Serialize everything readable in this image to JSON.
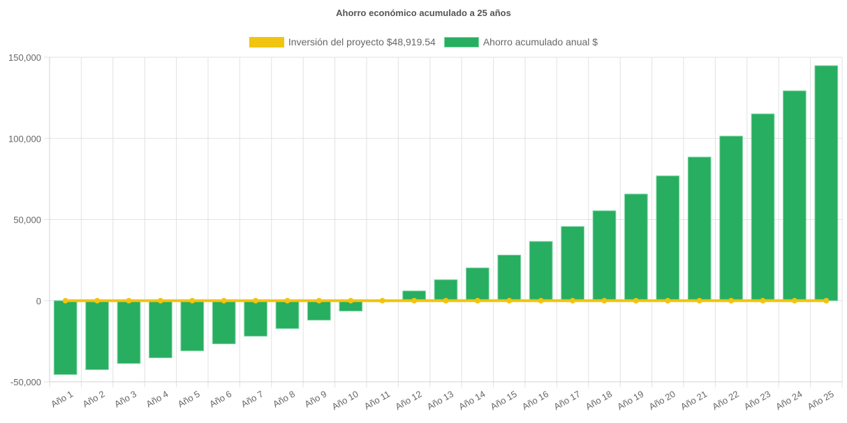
{
  "chart_data": {
    "type": "bar",
    "title": "Ahorro económico acumulado a 25 años",
    "xlabel": "",
    "ylabel": "",
    "ylim": [
      -50000,
      150000
    ],
    "yticks": [
      -50000,
      0,
      50000,
      100000,
      150000
    ],
    "ytick_labels": [
      "-50,000",
      "0",
      "50,000",
      "100,000",
      "150,000"
    ],
    "grid": true,
    "legend_position": "top-center",
    "categories": [
      "Año 1",
      "Año 2",
      "Año 3",
      "Año 4",
      "Año 5",
      "Año 6",
      "Año 7",
      "Año 8",
      "Año 9",
      "Año 10",
      "Año 11",
      "Año 12",
      "Año 13",
      "Año 14",
      "Año 15",
      "Año 16",
      "Año 17",
      "Año 18",
      "Año 19",
      "Año 20",
      "Año 21",
      "Año 22",
      "Año 23",
      "Año 24",
      "Año 25"
    ],
    "series": [
      {
        "name": "Inversión del proyecto $48,919.54",
        "type": "line",
        "color": "#f1c40f",
        "values": [
          0,
          0,
          0,
          0,
          0,
          0,
          0,
          0,
          0,
          0,
          0,
          0,
          0,
          0,
          0,
          0,
          0,
          0,
          0,
          0,
          0,
          0,
          0,
          0,
          0
        ]
      },
      {
        "name": "Ahorro acumulado anual $",
        "type": "bar",
        "color": "#27ae60",
        "values": [
          -45500,
          -42500,
          -38700,
          -35200,
          -30900,
          -26600,
          -21900,
          -17200,
          -12000,
          -6400,
          -600,
          6000,
          12900,
          20200,
          28100,
          36500,
          45700,
          55400,
          65700,
          76900,
          88500,
          101400,
          115100,
          129300,
          144800
        ]
      }
    ]
  }
}
